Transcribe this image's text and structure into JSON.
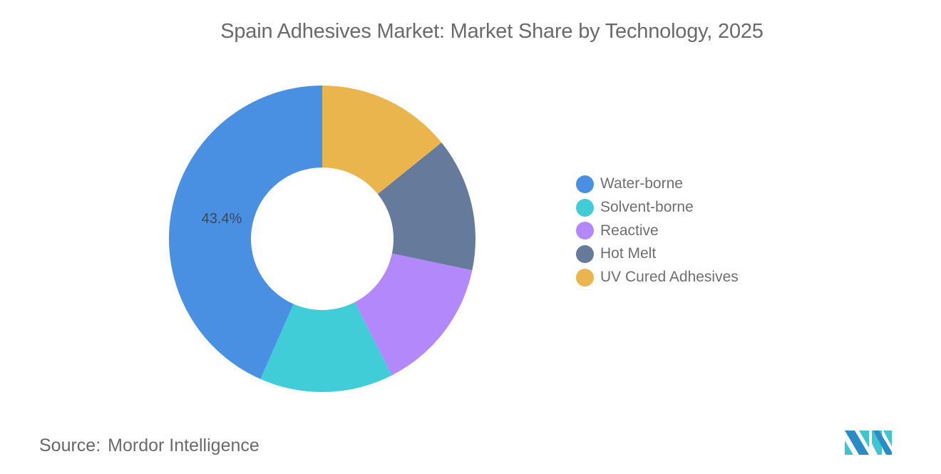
{
  "header": {
    "title": "Spain Adhesives Market: Market Share by Technology, 2025"
  },
  "legend": {
    "items": [
      {
        "label": "Water-borne",
        "color": "#4a90e2"
      },
      {
        "label": "Solvent-borne",
        "color": "#40cdd8"
      },
      {
        "label": "Reactive",
        "color": "#b388fa"
      },
      {
        "label": "Hot Melt",
        "color": "#667a9c"
      },
      {
        "label": "UV Cured Adhesives",
        "color": "#eab54c"
      }
    ]
  },
  "footer": {
    "source_key": "Source:",
    "source_value": "Mordor Intelligence",
    "logo": "mordor-intelligence-logo"
  },
  "chart_data": {
    "type": "pie",
    "variant": "donut",
    "title": "Spain Adhesives Market: Market Share by Technology, 2025",
    "categories": [
      "Water-borne",
      "Solvent-borne",
      "Reactive",
      "Hot Melt",
      "UV Cured Adhesives"
    ],
    "values": [
      43.4,
      14.1,
      14.2,
      14.1,
      14.2
    ],
    "unit": "%",
    "colors": [
      "#4a90e2",
      "#40cdd8",
      "#b388fa",
      "#667a9c",
      "#eab54c"
    ],
    "data_labels": [
      {
        "category": "Water-borne",
        "text": "43.4%"
      }
    ],
    "start_angle_deg": 0,
    "direction": "counterclockwise-from-top",
    "legend_position": "right",
    "center": [
      452,
      335
    ],
    "outer_radius": 215,
    "inner_radius": 100
  }
}
